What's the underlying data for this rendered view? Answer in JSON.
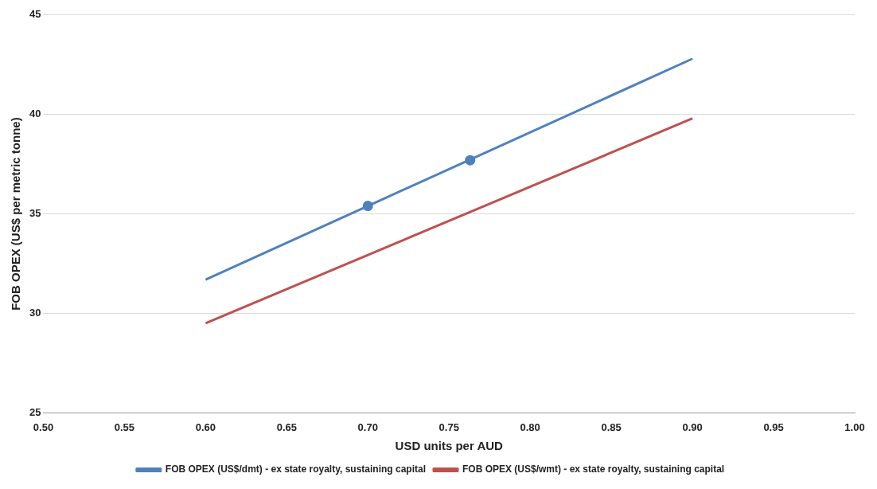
{
  "chart_data": {
    "type": "line",
    "xlabel": "USD units per AUD",
    "ylabel": "FOB OPEX (US$ per metric tonne)",
    "xlim": [
      0.5,
      1.0
    ],
    "xticks": [
      {
        "value": 0.5,
        "label": "0.50"
      },
      {
        "value": 0.55,
        "label": "0.55"
      },
      {
        "value": 0.6,
        "label": "0.60"
      },
      {
        "value": 0.65,
        "label": "0.65"
      },
      {
        "value": 0.7,
        "label": "0.70"
      },
      {
        "value": 0.75,
        "label": "0.75"
      },
      {
        "value": 0.8,
        "label": "0.80"
      },
      {
        "value": 0.85,
        "label": "0.85"
      },
      {
        "value": 0.9,
        "label": "0.90"
      },
      {
        "value": 0.95,
        "label": "0.95"
      },
      {
        "value": 1.0,
        "label": "1.00"
      }
    ],
    "ylim": [
      25,
      45
    ],
    "yticks": [
      25,
      30,
      35,
      40,
      45
    ],
    "grid": "y",
    "legend": "bottom",
    "series": [
      {
        "name": "FOB OPEX (US$/dmt) - ex state royalty, sustaining capital",
        "color": "#4f81bd",
        "marker": "none",
        "x": [
          0.6,
          0.9
        ],
        "values": [
          31.7,
          42.8
        ]
      },
      {
        "name": "FOB OPEX (US$/wmt) - ex state royalty, sustaining capital",
        "color": "#c0504d",
        "marker": "none",
        "x": [
          0.6,
          0.9
        ],
        "values": [
          29.5,
          39.8
        ]
      },
      {
        "color": "#4f81bd",
        "type": "scatter",
        "marker": "circle",
        "x": [
          0.7,
          0.763
        ],
        "values": [
          35.4,
          37.7
        ]
      }
    ]
  }
}
